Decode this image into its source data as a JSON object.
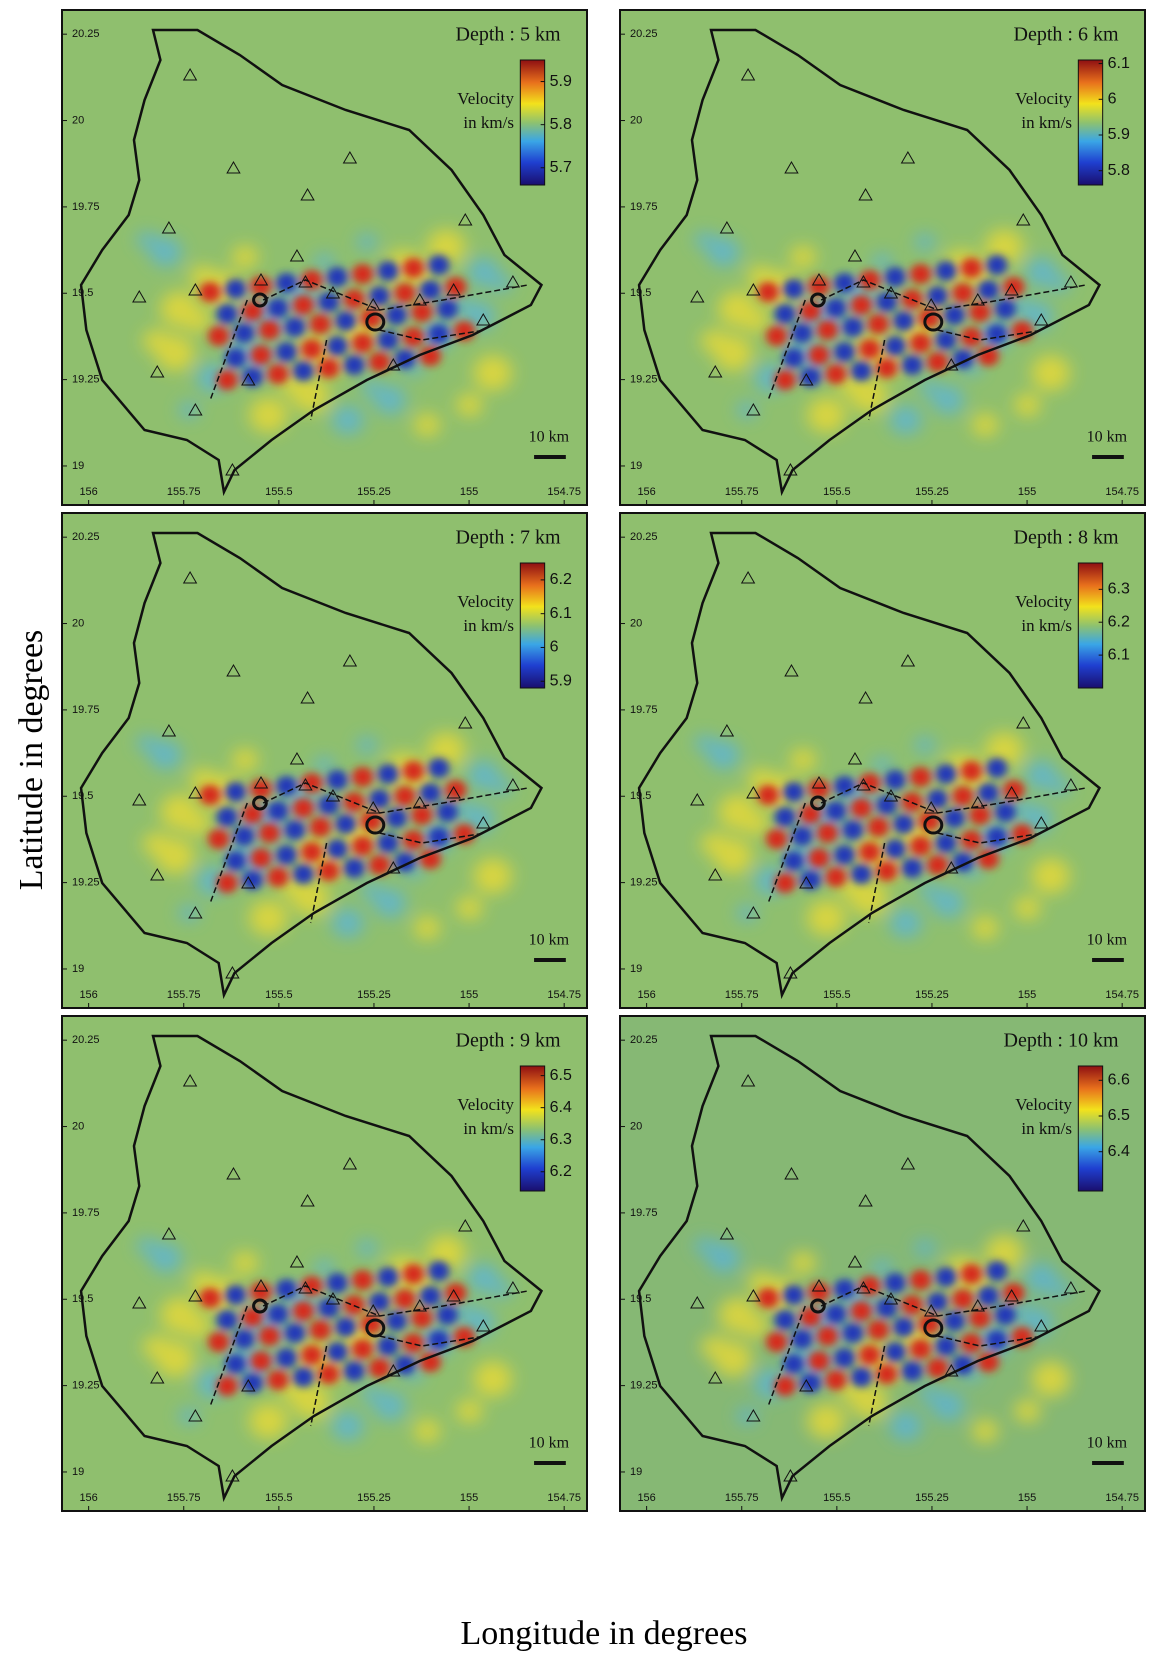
{
  "axis_labels": {
    "y": "Latitude in degrees",
    "x": "Longitude in degrees"
  },
  "lat_ticks": [
    20.25,
    20,
    19.75,
    19.5,
    19.25,
    19
  ],
  "lat_lim": [
    18.887,
    20.32
  ],
  "lon_ticks": [
    156,
    155.75,
    155.5,
    155.25,
    155,
    154.75
  ],
  "lon_lim": [
    156.07,
    154.69
  ],
  "panels": [
    {
      "title": "Depth : 5 km",
      "colorbar_label": [
        "Velocity",
        "in km/s"
      ],
      "clim": [
        5.66,
        5.95
      ],
      "colorbar_ticks": [
        5.9,
        5.8,
        5.7
      ],
      "scale_label": "10 km",
      "background": "#8fbf6e"
    },
    {
      "title": "Depth : 6 km",
      "colorbar_label": [
        "Velocity",
        "in km/s"
      ],
      "clim": [
        5.76,
        6.11
      ],
      "colorbar_ticks": [
        6.1,
        6,
        5.9,
        5.8
      ],
      "scale_label": "10 km",
      "background": "#8fbf6e"
    },
    {
      "title": "Depth : 7 km",
      "colorbar_label": [
        "Velocity",
        "in km/s"
      ],
      "clim": [
        5.88,
        6.25
      ],
      "colorbar_ticks": [
        6.2,
        6.1,
        6,
        5.9
      ],
      "scale_label": "10 km",
      "background": "#8fbf6e"
    },
    {
      "title": "Depth : 8 km",
      "colorbar_label": [
        "Velocity",
        "in km/s"
      ],
      "clim": [
        6.0,
        6.38
      ],
      "colorbar_ticks": [
        6.3,
        6.2,
        6.1
      ],
      "scale_label": "10 km",
      "background": "#8fbf6e"
    },
    {
      "title": "Depth : 9 km",
      "colorbar_label": [
        "Velocity",
        "in km/s"
      ],
      "clim": [
        6.14,
        6.53
      ],
      "colorbar_ticks": [
        6.5,
        6.4,
        6.3,
        6.2
      ],
      "scale_label": "10 km",
      "background": "#8fbf6e"
    },
    {
      "title": "Depth : 10 km",
      "colorbar_label": [
        "Velocity",
        "in km/s"
      ],
      "clim": [
        6.29,
        6.64
      ],
      "colorbar_ticks": [
        6.6,
        6.5,
        6.4
      ],
      "scale_label": "10 km",
      "background": "#86b874"
    }
  ]
}
